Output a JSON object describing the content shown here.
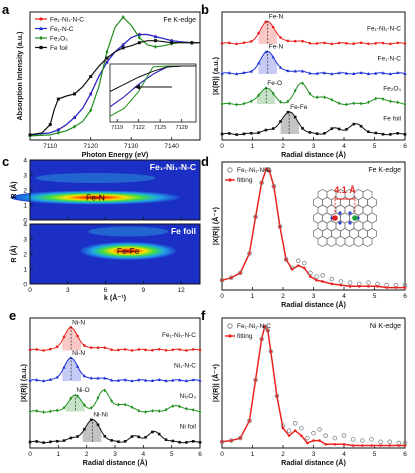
{
  "chart_data": [
    {
      "panel": "a",
      "type": "line",
      "edge_label": "Fe K-edge",
      "xlabel": "Photon Energy (eV)",
      "ylabel": "Absorption Intensity (a.u.)",
      "xlim": [
        7105,
        7147
      ],
      "ylim": [
        0,
        1.25
      ],
      "xticks": [
        7110,
        7120,
        7130,
        7140
      ],
      "series": [
        {
          "name": "Fe₁-Ni₁-N-C",
          "color": "#e8231f",
          "marker": "circle",
          "x": [
            7105,
            7110,
            7112,
            7114,
            7116,
            7118,
            7120,
            7122,
            7124,
            7126,
            7128,
            7130,
            7132,
            7134,
            7136,
            7138,
            7140,
            7142,
            7145,
            7147
          ],
          "y": [
            0.05,
            0.07,
            0.1,
            0.15,
            0.22,
            0.31,
            0.45,
            0.62,
            0.76,
            0.86,
            0.93,
            1.0,
            1.03,
            1.03,
            1.01,
            0.99,
            0.97,
            0.96,
            0.95,
            0.95
          ]
        },
        {
          "name": "Fe₁-N-C",
          "color": "#1d2fd8",
          "marker": "triangle",
          "x": [
            7105,
            7110,
            7112,
            7114,
            7116,
            7118,
            7120,
            7122,
            7124,
            7126,
            7128,
            7130,
            7132,
            7134,
            7136,
            7138,
            7140,
            7142,
            7145,
            7147
          ],
          "y": [
            0.05,
            0.07,
            0.1,
            0.15,
            0.22,
            0.31,
            0.45,
            0.62,
            0.76,
            0.86,
            0.93,
            1.0,
            1.03,
            1.03,
            1.01,
            0.99,
            0.97,
            0.96,
            0.95,
            0.95
          ]
        },
        {
          "name": "Fe₂O₃",
          "color": "#1f8f1f",
          "marker": "diamond",
          "x": [
            7105,
            7110,
            7112,
            7114,
            7116,
            7118,
            7120,
            7122,
            7124,
            7126,
            7128,
            7130,
            7132,
            7134,
            7136,
            7138,
            7140,
            7142,
            7145,
            7147
          ],
          "y": [
            0.04,
            0.05,
            0.07,
            0.09,
            0.13,
            0.18,
            0.29,
            0.52,
            0.86,
            1.1,
            1.2,
            1.12,
            1.0,
            0.93,
            0.91,
            0.92,
            0.94,
            0.95,
            0.95,
            0.95
          ]
        },
        {
          "name": "Fe foil",
          "color": "#111111",
          "marker": "square",
          "x": [
            7105,
            7108,
            7110,
            7111,
            7112,
            7114,
            7116,
            7118,
            7120,
            7122,
            7124,
            7126,
            7128,
            7130,
            7132,
            7134,
            7136,
            7138,
            7140,
            7142,
            7145,
            7147
          ],
          "y": [
            0.05,
            0.07,
            0.15,
            0.3,
            0.4,
            0.43,
            0.45,
            0.52,
            0.62,
            0.72,
            0.8,
            0.86,
            0.9,
            0.92,
            0.95,
            0.97,
            0.97,
            0.96,
            0.95,
            0.95,
            0.95,
            0.95
          ]
        }
      ],
      "inset": {
        "xlim": [
          7118,
          7130
        ],
        "xticks": [
          7119,
          7122,
          7125,
          7128
        ],
        "arrow": "left"
      }
    },
    {
      "panel": "b",
      "type": "line",
      "xlabel": "Radial distance (Å)",
      "ylabel": "|X(R)| (a.u.)",
      "xlim": [
        0,
        6
      ],
      "xticks": [
        0,
        1,
        2,
        3,
        4,
        5,
        6
      ],
      "series": [
        {
          "name": "Fe₁-Ni₁-N-C",
          "color": "#e8231f",
          "peak_label": "Fe-N",
          "peak_r": 1.5
        },
        {
          "name": "Fe₁-N-C",
          "color": "#1d2fd8",
          "peak_label": "Fe-N",
          "peak_r": 1.5
        },
        {
          "name": "Fe₂O₃",
          "color": "#1f8f1f",
          "peak_label": "Fe-O",
          "peak_r": 1.45
        },
        {
          "name": "Fe foil",
          "color": "#111111",
          "peak_label": "Fe-Fe",
          "peak_r": 2.2
        }
      ]
    },
    {
      "panel": "c",
      "type": "heatmap",
      "xlabel": "k (Å⁻¹)",
      "ylabel": "R (Å)",
      "xlim": [
        0,
        13.5
      ],
      "ylim": [
        0,
        4
      ],
      "xticks": [
        0,
        3,
        6,
        9,
        12
      ],
      "yticks": [
        0,
        1,
        2,
        3,
        4
      ],
      "maps": [
        {
          "name": "Fe₁-Ni₁-N-C",
          "peak_label": "Fe-N",
          "peak_k": 5.2,
          "peak_r": 1.5
        },
        {
          "name": "Fe foil",
          "peak_label": "Fe-Fe",
          "peak_k": 7.8,
          "peak_r": 2.2
        }
      ]
    },
    {
      "panel": "d",
      "type": "line",
      "edge_label": "Fe K-edge",
      "xlabel": "Radial distance (Å)",
      "ylabel": "|X(R)| (Å⁻⁴)",
      "xlim": [
        0,
        6
      ],
      "ylim": [
        0,
        1.05
      ],
      "xticks": [
        0,
        1,
        2,
        3,
        4,
        5,
        6
      ],
      "legend": [
        "Fe₁-Ni₁-N-C",
        "fitting"
      ],
      "distance_label": "4.1 Å",
      "x": [
        0.0,
        0.3,
        0.6,
        0.9,
        1.1,
        1.3,
        1.45,
        1.55,
        1.7,
        1.9,
        2.1,
        2.3,
        2.5,
        2.7,
        2.9,
        3.1,
        3.3,
        3.6,
        3.9,
        4.2,
        4.5,
        4.8,
        5.1,
        5.4,
        5.7,
        6.0
      ],
      "data_values": [
        0.08,
        0.1,
        0.14,
        0.3,
        0.6,
        0.88,
        0.99,
        0.98,
        0.85,
        0.52,
        0.25,
        0.18,
        0.24,
        0.22,
        0.14,
        0.11,
        0.12,
        0.09,
        0.07,
        0.06,
        0.05,
        0.06,
        0.05,
        0.04,
        0.04,
        0.04
      ],
      "fit_values": [
        0.08,
        0.1,
        0.14,
        0.3,
        0.6,
        0.88,
        0.99,
        0.98,
        0.85,
        0.52,
        0.25,
        0.17,
        0.2,
        0.18,
        0.11,
        0.08,
        0.07,
        0.05,
        0.04,
        0.03,
        0.03,
        0.03,
        0.03,
        0.02,
        0.02,
        0.02
      ]
    },
    {
      "panel": "e",
      "type": "line",
      "xlabel": "Radial distance (Å)",
      "ylabel": "|X(R)| (a.u.)",
      "xlim": [
        0,
        6
      ],
      "xticks": [
        0,
        1,
        2,
        3,
        4,
        5,
        6
      ],
      "series": [
        {
          "name": "Fe₁-Ni₁-N-C",
          "color": "#e8231f",
          "peak_label": "Ni-N",
          "peak_r": 1.45
        },
        {
          "name": "Ni₁-N-C",
          "color": "#1d2fd8",
          "peak_label": "Ni-N",
          "peak_r": 1.45
        },
        {
          "name": "Ni₂O₃",
          "color": "#1f8f1f",
          "peak_label": "Ni-O",
          "peak_r": 1.6
        },
        {
          "name": "Ni foil",
          "color": "#111111",
          "peak_label": "Ni-Ni",
          "peak_r": 2.2
        }
      ]
    },
    {
      "panel": "f",
      "type": "line",
      "edge_label": "Ni K-edge",
      "xlabel": "Radial distance (Å)",
      "ylabel": "|X(R)| (Å⁻⁴)",
      "xlim": [
        0,
        6
      ],
      "ylim": [
        0,
        1.05
      ],
      "xticks": [
        0,
        1,
        2,
        3,
        4,
        5,
        6
      ],
      "legend": [
        "Fe₁-Ni₁-N-C",
        "fitting"
      ],
      "x": [
        0.0,
        0.3,
        0.6,
        0.9,
        1.1,
        1.3,
        1.4,
        1.5,
        1.6,
        1.8,
        2.0,
        2.2,
        2.4,
        2.6,
        2.8,
        3.0,
        3.2,
        3.4,
        3.7,
        4.0,
        4.3,
        4.6,
        4.9,
        5.2,
        5.5,
        5.8,
        6.0
      ],
      "data_values": [
        0.05,
        0.06,
        0.08,
        0.22,
        0.55,
        0.88,
        0.98,
        0.95,
        0.78,
        0.42,
        0.18,
        0.14,
        0.2,
        0.16,
        0.08,
        0.12,
        0.15,
        0.1,
        0.08,
        0.1,
        0.07,
        0.06,
        0.07,
        0.05,
        0.05,
        0.04,
        0.04
      ],
      "fit_values": [
        0.05,
        0.06,
        0.08,
        0.22,
        0.55,
        0.88,
        0.98,
        0.95,
        0.78,
        0.42,
        0.16,
        0.1,
        0.14,
        0.1,
        0.04,
        0.06,
        0.06,
        0.03,
        0.03,
        0.03,
        0.02,
        0.02,
        0.02,
        0.02,
        0.02,
        0.02,
        0.02
      ]
    }
  ],
  "panel_labels": [
    "a",
    "b",
    "c",
    "d",
    "e",
    "f"
  ]
}
